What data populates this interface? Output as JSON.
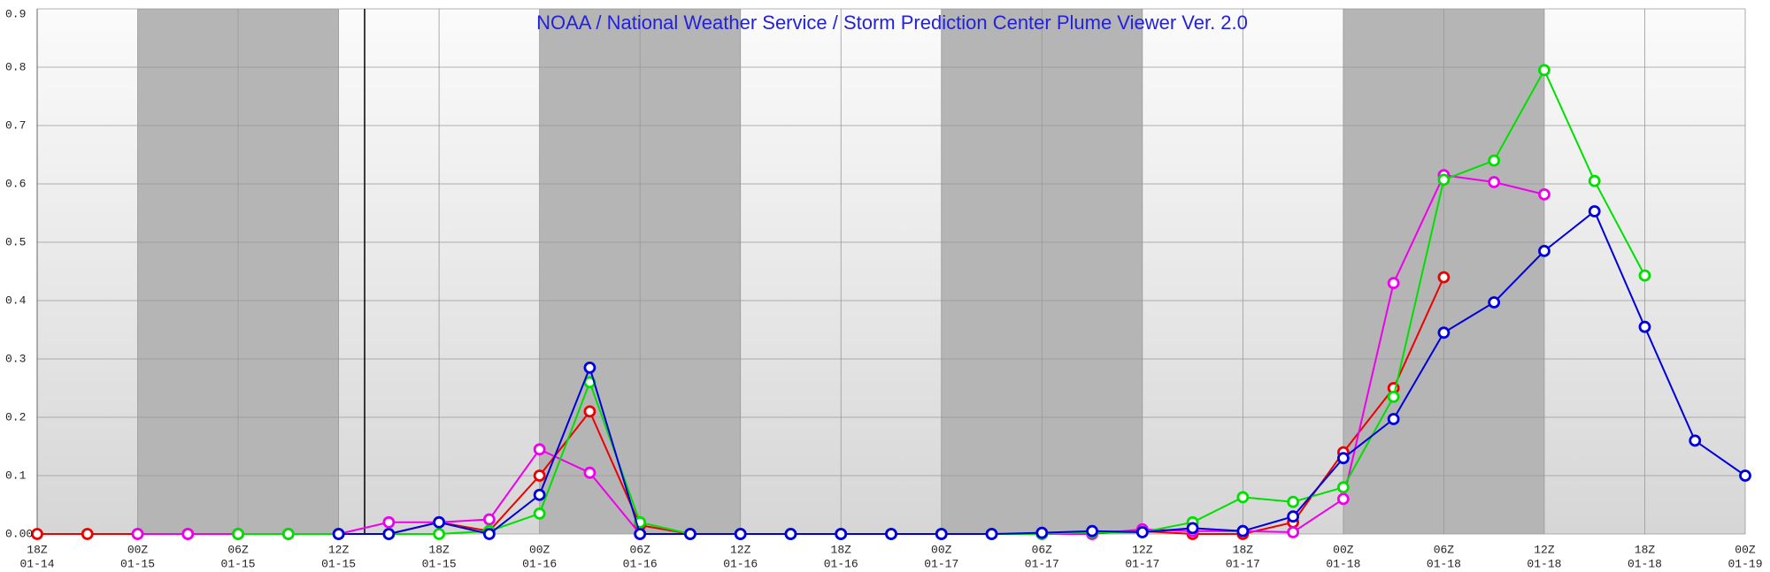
{
  "chart_data": {
    "type": "line",
    "title": "NOAA / National Weather Service / Storm Prediction Center Plume Viewer Ver. 2.0",
    "title_color": "#2222dd",
    "categories": [
      [
        "18Z",
        "01-14"
      ],
      null,
      [
        "00Z",
        "01-15"
      ],
      null,
      [
        "06Z",
        "01-15"
      ],
      null,
      [
        "12Z",
        "01-15"
      ],
      null,
      [
        "18Z",
        "01-15"
      ],
      null,
      [
        "00Z",
        "01-16"
      ],
      null,
      [
        "06Z",
        "01-16"
      ],
      null,
      [
        "12Z",
        "01-16"
      ],
      null,
      [
        "18Z",
        "01-16"
      ],
      null,
      [
        "00Z",
        "01-17"
      ],
      null,
      [
        "06Z",
        "01-17"
      ],
      null,
      [
        "12Z",
        "01-17"
      ],
      null,
      [
        "18Z",
        "01-17"
      ],
      null,
      [
        "00Z",
        "01-18"
      ],
      null,
      [
        "06Z",
        "01-18"
      ],
      null,
      [
        "12Z",
        "01-18"
      ],
      null,
      [
        "18Z",
        "01-18"
      ],
      null,
      [
        "00Z",
        "01-19"
      ]
    ],
    "series": [
      {
        "color": "#ee0000",
        "values": [
          0,
          0,
          0,
          0,
          0,
          0,
          0,
          0,
          0.02,
          0.005,
          0.1,
          0.21,
          0.015,
          0,
          0,
          0,
          0,
          0,
          0,
          0,
          0,
          0.003,
          0.005,
          0,
          0,
          0.02,
          0.14,
          0.25,
          0.44,
          null,
          null,
          null,
          null,
          null,
          null
        ]
      },
      {
        "color": "#ee00ee",
        "values": [
          null,
          null,
          0,
          0,
          0,
          0,
          0,
          0.02,
          0.02,
          0.025,
          0.145,
          0.105,
          0,
          0,
          0,
          0,
          0,
          0,
          0,
          0,
          0,
          0,
          0.008,
          0.005,
          0.005,
          0.003,
          0.06,
          0.43,
          0.615,
          0.603,
          0.582,
          null,
          null,
          null,
          null
        ]
      },
      {
        "color": "#00e000",
        "values": [
          null,
          null,
          null,
          null,
          0,
          0,
          0,
          0,
          0,
          0.005,
          0.035,
          0.26,
          0.02,
          0,
          0,
          0,
          0,
          0,
          0,
          0,
          0,
          0.003,
          0.003,
          0.02,
          0.063,
          0.055,
          0.08,
          0.235,
          0.607,
          0.64,
          0.795,
          0.605,
          0.443,
          null,
          null
        ]
      },
      {
        "color": "#0000dd",
        "values": [
          null,
          null,
          null,
          null,
          null,
          null,
          0,
          0,
          0.02,
          0,
          0.067,
          0.285,
          0,
          0,
          0,
          0,
          0,
          0,
          0,
          0,
          0.002,
          0.005,
          0.003,
          0.01,
          0.005,
          0.03,
          0.13,
          0.197,
          0.345,
          0.397,
          0.485,
          0.553,
          0.355,
          0.16,
          0.1
        ]
      }
    ],
    "ylim": [
      0,
      0.9
    ],
    "yticks": [
      {
        "value": 0,
        "label": "0.00"
      },
      0.1,
      0.2,
      0.3,
      0.4,
      0.5,
      0.6,
      0.7,
      0.8,
      0.9
    ],
    "grid": true
  }
}
